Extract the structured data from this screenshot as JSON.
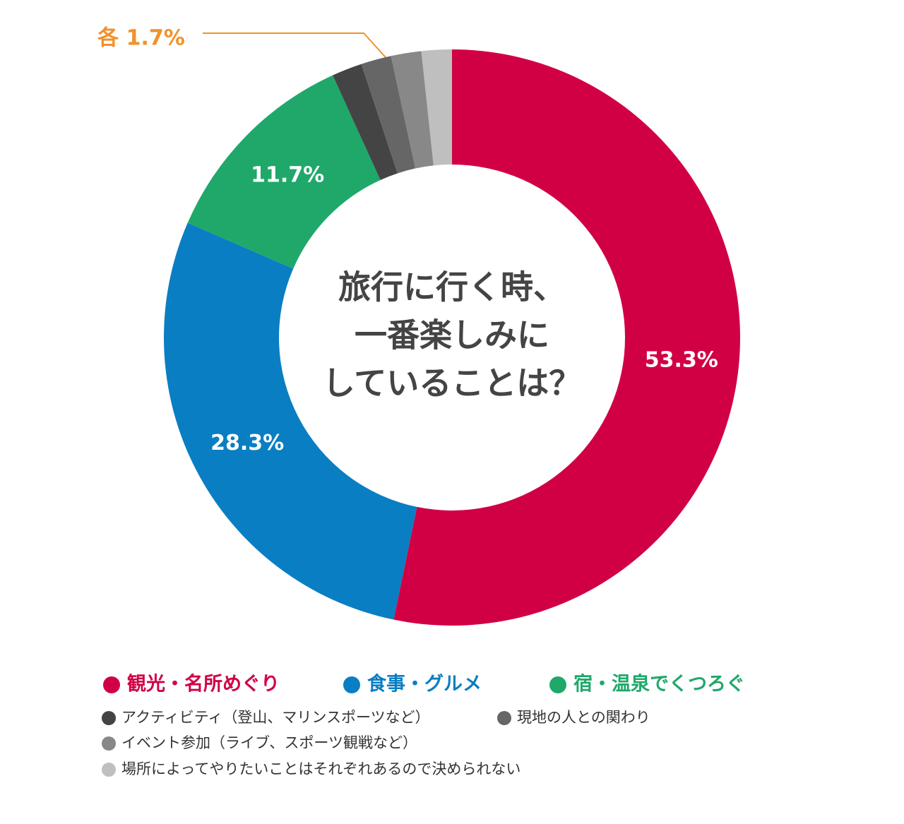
{
  "chart_data": {
    "type": "donut",
    "categories": [
      "観光・名所めぐり",
      "食事・グルメ",
      "宿・温泉でくつろぐ",
      "アクティビティ（登山、マリンスポーツなど）",
      "現地の人との関わり",
      "イベント参加（ライブ、スポーツ観戦など）",
      "場所によってやりたいことはそれぞれあるので決められない"
    ],
    "values": [
      53.3,
      28.3,
      11.7,
      1.7,
      1.7,
      1.7,
      1.7
    ],
    "value_labels": [
      "53.3%",
      "28.3%",
      "11.7%",
      null,
      null,
      null,
      null
    ],
    "colors": [
      "#d10045",
      "#0a7ec2",
      "#1fa86a",
      "#444444",
      "#666666",
      "#888888",
      "#bfbfbf"
    ],
    "annotation": "各 1.7%",
    "annotation_color": "#f0922a",
    "center_text": [
      "旅行に行く時、",
      "一番楽しみに",
      "していることは？"
    ]
  }
}
